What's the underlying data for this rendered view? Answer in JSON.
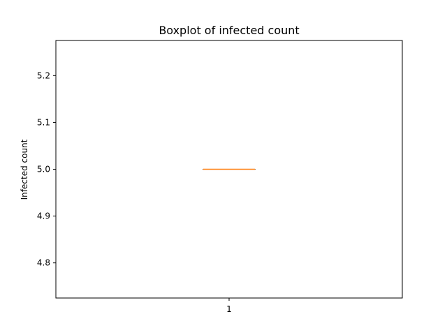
{
  "chart_data": {
    "type": "boxplot",
    "title": "Boxplot of infected count",
    "xlabel": "",
    "ylabel": "Infected count",
    "categories": [
      "1"
    ],
    "boxes": [
      {
        "category": "1",
        "min": 5.0,
        "q1": 5.0,
        "median": 5.0,
        "q3": 5.0,
        "max": 5.0
      }
    ],
    "ylim": [
      4.725,
      5.275
    ],
    "yticks": [
      4.8,
      4.9,
      5.0,
      5.1,
      5.2
    ],
    "ytick_labels": [
      "4.8",
      "4.9",
      "5.0",
      "5.1",
      "5.2"
    ],
    "grid": false,
    "colors": {
      "median": "#ff7f0e",
      "box": "#000000",
      "frame": "#000000"
    }
  }
}
